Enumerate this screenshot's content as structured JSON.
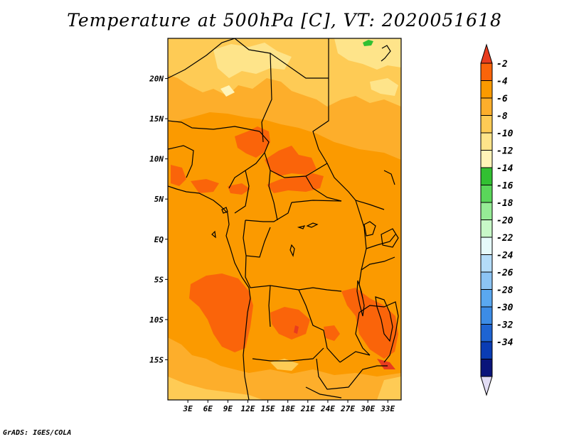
{
  "title": "Temperature at 500hPa [C], VT: 2020051618",
  "footer": "GrADS: IGES/COLA",
  "map": {
    "lon_range": [
      0,
      35
    ],
    "lat_range": [
      -20,
      25
    ],
    "lat_ticks": [
      {
        "lat": 20,
        "label": "20N"
      },
      {
        "lat": 15,
        "label": "15N"
      },
      {
        "lat": 10,
        "label": "10N"
      },
      {
        "lat": 5,
        "label": "5N"
      },
      {
        "lat": 0,
        "label": "EQ"
      },
      {
        "lat": -5,
        "label": "5S"
      },
      {
        "lat": -10,
        "label": "10S"
      },
      {
        "lat": -15,
        "label": "15S"
      }
    ],
    "lon_ticks": [
      {
        "lon": 3,
        "label": "3E"
      },
      {
        "lon": 6,
        "label": "6E"
      },
      {
        "lon": 9,
        "label": "9E"
      },
      {
        "lon": 12,
        "label": "12E"
      },
      {
        "lon": 15,
        "label": "15E"
      },
      {
        "lon": 18,
        "label": "18E"
      },
      {
        "lon": 21,
        "label": "21E"
      },
      {
        "lon": 24,
        "label": "24E"
      },
      {
        "lon": 27,
        "label": "27E"
      },
      {
        "lon": 30,
        "label": "30E"
      },
      {
        "lon": 33,
        "label": "33E"
      }
    ]
  },
  "colorbar": {
    "top_arrow_color": "#e83c1e",
    "bottom_arrow_color": "#e2ddf4",
    "segments": [
      {
        "color": "#fa640a",
        "label": "-2"
      },
      {
        "color": "#fb9a00",
        "label": "-4"
      },
      {
        "color": "#fdae2b",
        "label": "-6"
      },
      {
        "color": "#fecb55",
        "label": "-8"
      },
      {
        "color": "#fee48a",
        "label": "-10"
      },
      {
        "color": "#fff4b8",
        "label": "-12"
      },
      {
        "color": "#32c032",
        "label": "-14"
      },
      {
        "color": "#5ad65a",
        "label": "-16"
      },
      {
        "color": "#96ec96",
        "label": "-18"
      },
      {
        "color": "#c8f8c8",
        "label": "-20"
      },
      {
        "color": "#e6fafa",
        "label": "-22"
      },
      {
        "color": "#b4dcf8",
        "label": "-24"
      },
      {
        "color": "#8cc4f4",
        "label": "-26"
      },
      {
        "color": "#5aa8f0",
        "label": "-28"
      },
      {
        "color": "#3c8ce6",
        "label": "-30"
      },
      {
        "color": "#1e64d2",
        "label": "-32"
      },
      {
        "color": "#0a3cb4",
        "label": "-34"
      },
      {
        "color": "#0a147a",
        "label": ""
      }
    ]
  }
}
